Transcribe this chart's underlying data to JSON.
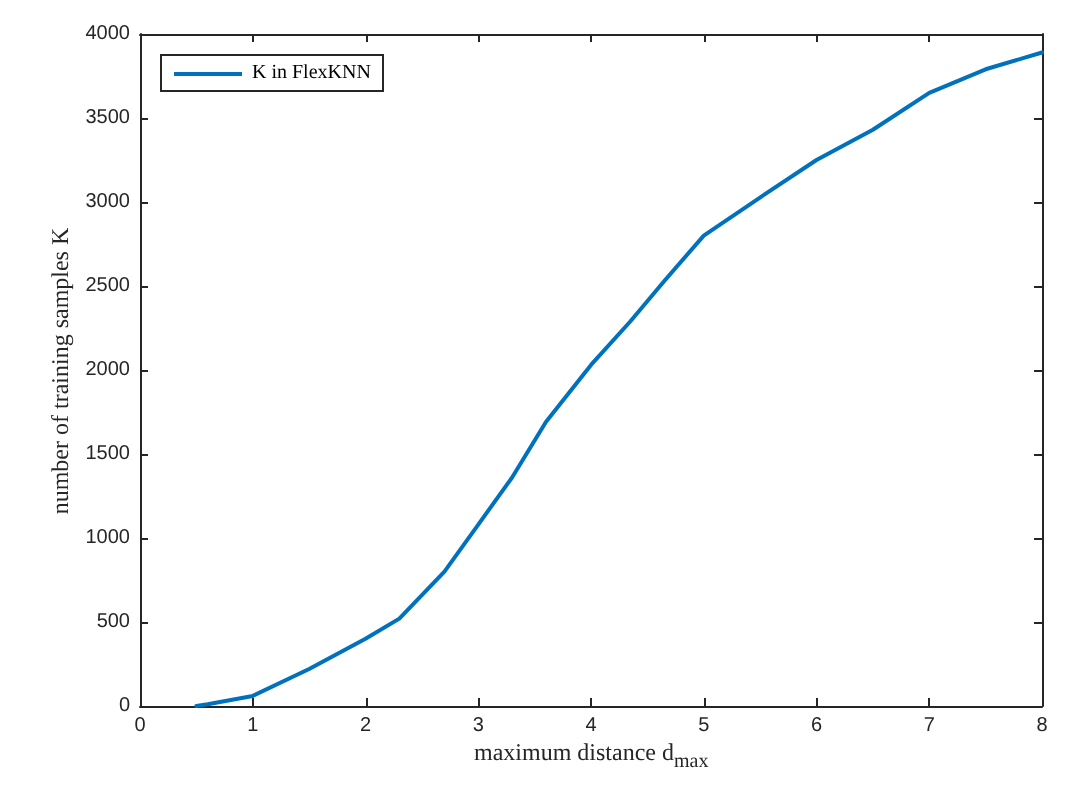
{
  "chart_data": {
    "type": "line",
    "xlabel": "maximum distance d$_{max}$",
    "ylabel": "number of training samples K",
    "x": [
      0.5,
      0.6,
      1.0,
      1.5,
      2.0,
      2.3,
      2.7,
      3.0,
      3.3,
      3.6,
      4.0,
      4.35,
      4.65,
      5.0,
      5.55,
      6.0,
      6.5,
      7.0,
      7.5,
      8.0
    ],
    "series": [
      {
        "name": "K in FlexKNN",
        "color": "#0072bd",
        "values": [
          0,
          10,
          60,
          220,
          400,
          520,
          800,
          1080,
          1360,
          1690,
          2030,
          2290,
          2530,
          2800,
          3050,
          3250,
          3430,
          3650,
          3790,
          3890
        ]
      }
    ],
    "xlim": [
      0,
      8
    ],
    "xticks": [
      0,
      1,
      2,
      3,
      4,
      5,
      6,
      7,
      8
    ],
    "ylim": [
      0,
      4000
    ],
    "yticks": [
      0,
      500,
      1000,
      1500,
      2000,
      2500,
      3000,
      3500,
      4000
    ],
    "grid": false,
    "legend": "top left",
    "marker": "none",
    "line_style": "solid"
  }
}
